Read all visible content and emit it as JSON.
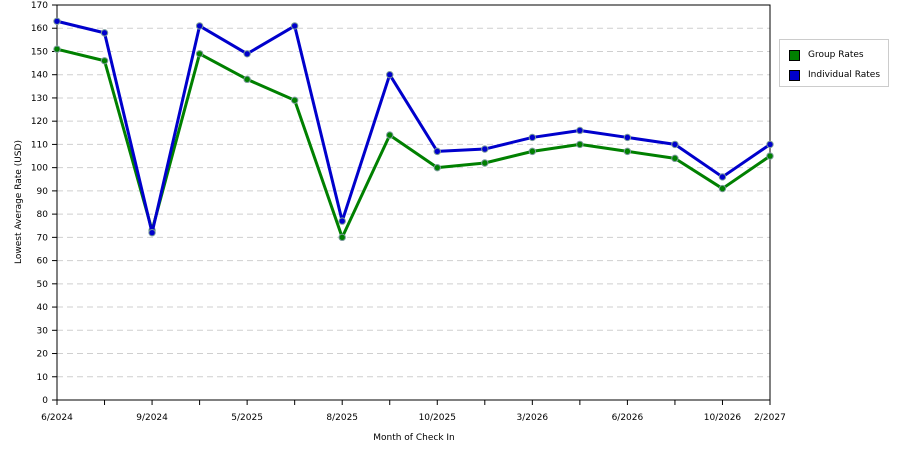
{
  "chart_data": {
    "type": "line",
    "xlabel": "Month of Check In",
    "ylabel": "Lowest Average Rate (USD)",
    "ylim": [
      0,
      170
    ],
    "yticks": [
      0,
      10,
      20,
      30,
      40,
      50,
      60,
      70,
      80,
      90,
      100,
      110,
      120,
      130,
      140,
      150,
      160,
      170
    ],
    "x_tick_labels": [
      {
        "i": 0,
        "label": "6/2024"
      },
      {
        "i": 2,
        "label": "9/2024"
      },
      {
        "i": 4,
        "label": "5/2025"
      },
      {
        "i": 6,
        "label": "8/2025"
      },
      {
        "i": 8,
        "label": "10/2025"
      },
      {
        "i": 10,
        "label": "3/2026"
      },
      {
        "i": 12,
        "label": "6/2026"
      },
      {
        "i": 14,
        "label": "10/2026"
      },
      {
        "i": 15,
        "label": "2/2027"
      }
    ],
    "grid": true,
    "legend_position": "right",
    "series": [
      {
        "name": "Group Rates",
        "color": "#008000",
        "values": [
          151,
          146,
          73,
          149,
          138,
          129,
          70,
          114,
          100,
          102,
          107,
          110,
          107,
          104,
          91,
          105
        ]
      },
      {
        "name": "Individual Rates",
        "color": "#0000cc",
        "values": [
          163,
          158,
          72,
          161,
          149,
          161,
          77,
          140,
          107,
          108,
          113,
          116,
          113,
          110,
          96,
          110
        ]
      }
    ]
  }
}
